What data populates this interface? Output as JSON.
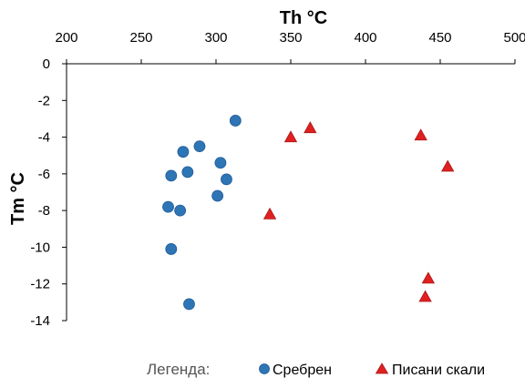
{
  "chart_data": {
    "type": "scatter",
    "title": "",
    "xlabel": "Th °C",
    "ylabel": "Tm °C",
    "xlim": [
      200,
      500
    ],
    "ylim": [
      -14,
      0
    ],
    "x_ticks": [
      200,
      250,
      300,
      350,
      400,
      450,
      500
    ],
    "y_ticks": [
      0,
      -2,
      -4,
      -6,
      -8,
      -10,
      -12,
      -14
    ],
    "x_tick_labels": [
      "200",
      "250",
      "300",
      "350",
      "400",
      "450",
      "500"
    ],
    "y_tick_labels": [
      "0",
      "-2",
      "-4",
      "-6",
      "-8",
      "-10",
      "-12",
      "-14"
    ],
    "x_axis_position": "top",
    "grid": false,
    "legend": {
      "label": "Легенда:",
      "placement": "bottom"
    },
    "series": [
      {
        "name": "Сребрен",
        "marker": "circle",
        "color": "#2e75b6",
        "points": [
          {
            "x": 313,
            "y": -3.1
          },
          {
            "x": 289,
            "y": -4.5
          },
          {
            "x": 278,
            "y": -4.8
          },
          {
            "x": 303,
            "y": -5.4
          },
          {
            "x": 281,
            "y": -5.9
          },
          {
            "x": 270,
            "y": -6.1
          },
          {
            "x": 307,
            "y": -6.3
          },
          {
            "x": 301,
            "y": -7.2
          },
          {
            "x": 268,
            "y": -7.8
          },
          {
            "x": 276,
            "y": -8.0
          },
          {
            "x": 270,
            "y": -10.1
          },
          {
            "x": 282,
            "y": -13.1
          }
        ]
      },
      {
        "name": "Писани скали",
        "marker": "triangle",
        "color": "#e02020",
        "points": [
          {
            "x": 363,
            "y": -3.5
          },
          {
            "x": 350,
            "y": -4.0
          },
          {
            "x": 437,
            "y": -3.9
          },
          {
            "x": 455,
            "y": -5.6
          },
          {
            "x": 336,
            "y": -8.2
          },
          {
            "x": 442,
            "y": -11.7
          },
          {
            "x": 440,
            "y": -12.7
          }
        ]
      }
    ]
  }
}
